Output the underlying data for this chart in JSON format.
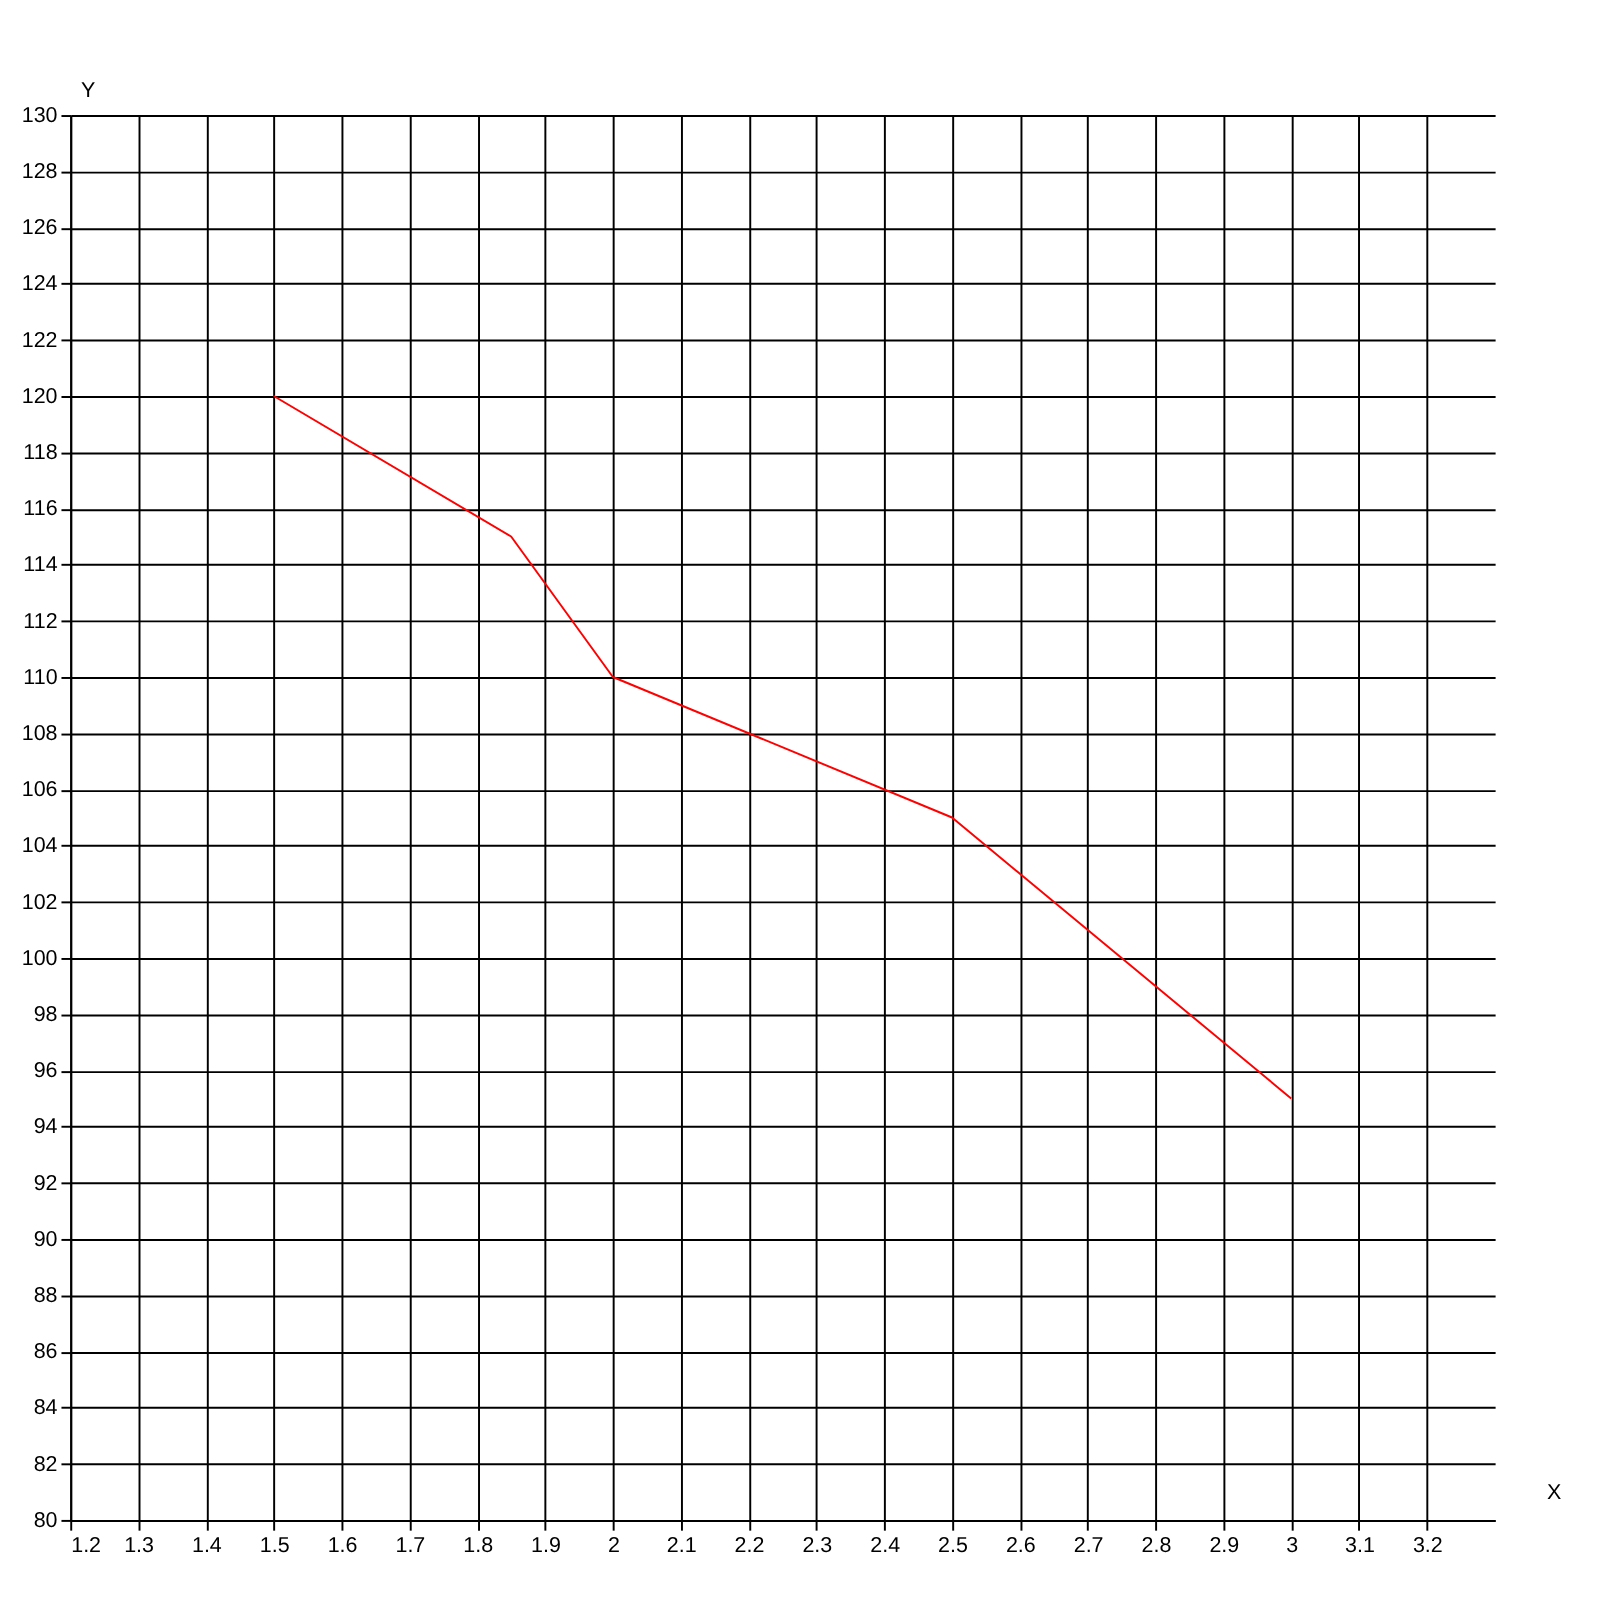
{
  "chart_data": {
    "type": "line",
    "xlabel": "X",
    "ylabel": "Y",
    "x": [
      1.5,
      1.85,
      2,
      2.5,
      3
    ],
    "series": [
      {
        "color": "#ff0000",
        "values": [
          120,
          115,
          110,
          105,
          95
        ]
      }
    ],
    "xlim": [
      1.2,
      3.3
    ],
    "xticks": [
      1.2,
      1.3,
      1.4,
      1.5,
      1.6,
      1.7,
      1.8,
      1.9,
      2,
      2.1,
      2.2,
      2.3,
      2.4,
      2.5,
      2.6,
      2.7,
      2.8,
      2.9,
      3,
      3.1,
      3.2
    ],
    "ylim": [
      80,
      130
    ],
    "yticks": [
      80,
      82,
      84,
      86,
      88,
      90,
      92,
      94,
      96,
      98,
      100,
      102,
      104,
      106,
      108,
      110,
      112,
      114,
      116,
      118,
      120,
      122,
      124,
      126,
      128,
      130
    ],
    "grid": true,
    "marker": "none",
    "line_style": "solid"
  }
}
